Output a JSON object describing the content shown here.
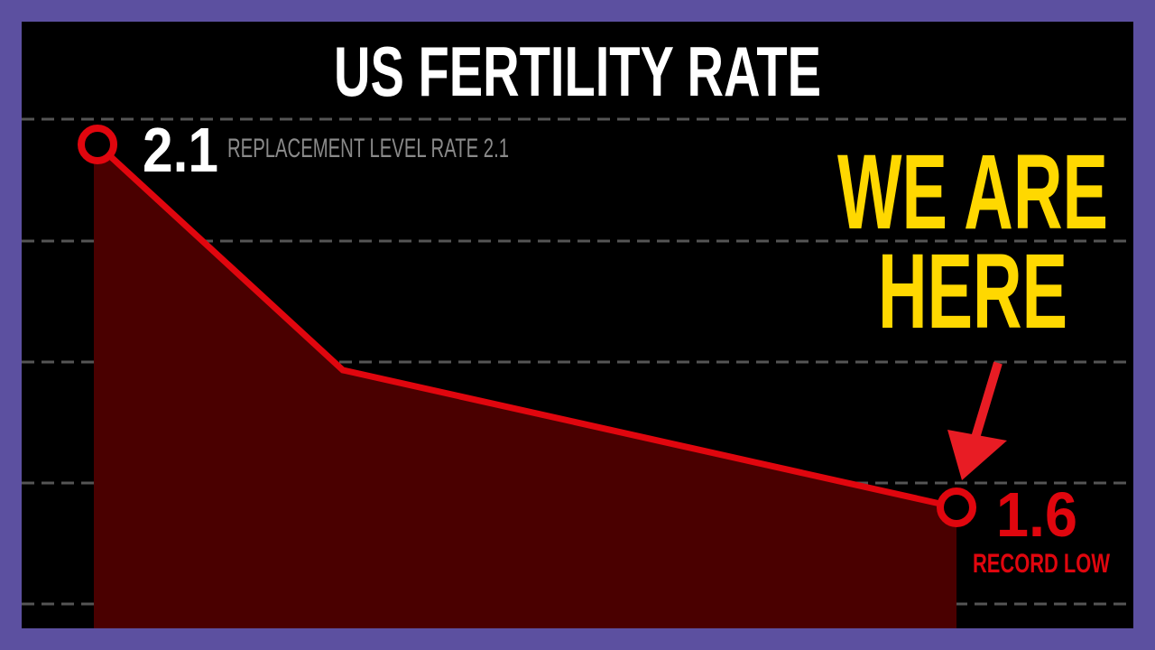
{
  "chart_data": {
    "type": "area",
    "title": "US FERTILITY RATE",
    "xlabel": "",
    "ylabel": "",
    "x": [
      0,
      1,
      2
    ],
    "series": [
      {
        "values": [
          2.1,
          1.8,
          1.6
        ]
      }
    ],
    "ylim": [
      1.4,
      2.15
    ],
    "grid": true,
    "annotations": {
      "start_value_label": "2.1",
      "replacement_label": "REPLACEMENT LEVEL RATE 2.1",
      "callout": [
        "WE ARE",
        "HERE"
      ],
      "end_value_label": "1.6",
      "end_sub_label": "RECORD LOW"
    },
    "colors": {
      "background": "#000000",
      "frame": "#5c50a0",
      "line": "#e0060e",
      "area": "#4a0000",
      "callout": "#ffd800",
      "arrow": "#e81c24",
      "grid": "#555555",
      "title": "#ffffff",
      "muted": "#8a8a8a"
    }
  }
}
